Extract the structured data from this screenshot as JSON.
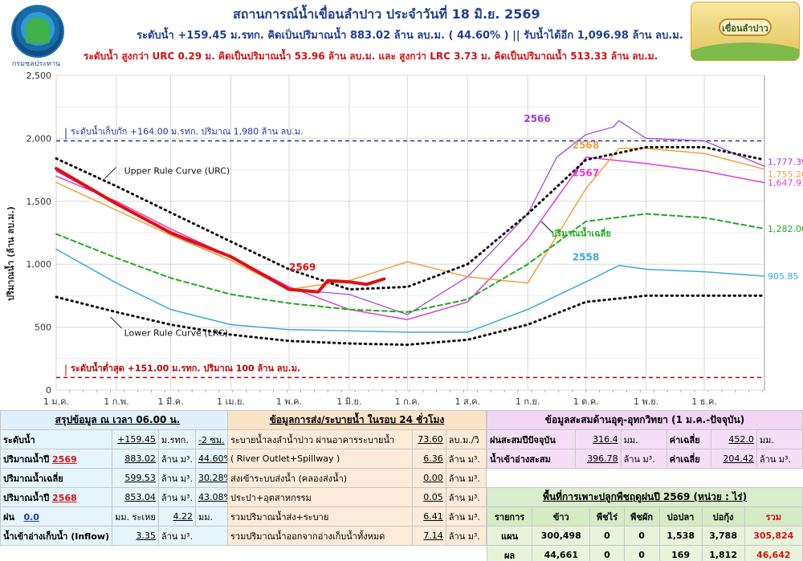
{
  "header": {
    "title": "สถานการณ์น้ำเขื่อนลำปาว ประจำวันที่ 18 มิ.ย. 2569",
    "line2": "ระดับน้ำ +159.45 ม.รทก.  คิดเป็นปริมาณน้ำ 883.02 ล้าน ลบ.ม. ( 44.60% )  || รับน้ำได้อีก 1,096.98 ล้าน ลบ.ม.",
    "line3": "ระดับน้ำ สูงกว่า URC 0.29 ม. คิดเป็นปริมาณน้ำ 53.96 ล้าน ลบ.ม. และ สูงกว่า LRC 3.73 ม. คิดเป็นปริมาณน้ำ 513.33 ล้าน ลบ.ม.",
    "logo_caption": "กรมชลประทาน",
    "badge_text": "เขื่อนลำปาว"
  },
  "chart_data": {
    "type": "line",
    "ylabel": "ปริมาณน้ำ (ล้าน ลบ.ม.)",
    "ylim": [
      0,
      2500
    ],
    "yticks": [
      "0",
      "500",
      "1,000",
      "1,500",
      "2,000",
      "2,500"
    ],
    "xlim": [
      0,
      365
    ],
    "xticks": [
      {
        "label": "1 ม.ค.",
        "day": 0
      },
      {
        "label": "1 ก.พ.",
        "day": 31
      },
      {
        "label": "1 มี.ค.",
        "day": 59
      },
      {
        "label": "1 เม.ย.",
        "day": 90
      },
      {
        "label": "1 พ.ค.",
        "day": 120
      },
      {
        "label": "1 มิ.ย.",
        "day": 151
      },
      {
        "label": "1 ก.ค.",
        "day": 181
      },
      {
        "label": "1 ส.ค.",
        "day": 212
      },
      {
        "label": "1 ก.ย.",
        "day": 243
      },
      {
        "label": "1 ต.ค.",
        "day": 273
      },
      {
        "label": "1 พ.ย.",
        "day": 304
      },
      {
        "label": "1 ธ.ค.",
        "day": 334
      }
    ],
    "grid": true,
    "reference_lines": [
      {
        "label": "ระดับน้ำเก็บกัก  +164.00 ม.รทก. ปริมาณ 1,980 ล้าน ลบ.ม.",
        "y": 1980,
        "color": "#1f2f9f"
      },
      {
        "label": "ระดับน้ำต่ำสุด  +151.00 ม.รทก. ปริมาณ 100 ล้าน ลบ.ม.",
        "y": 100,
        "color": "#c00000"
      }
    ],
    "series": [
      {
        "name": "Upper Rule Curve (URC)",
        "color": "#111111",
        "style": "dotted",
        "width": 3,
        "x": [
          0,
          31,
          59,
          90,
          120,
          151,
          181,
          212,
          243,
          273,
          304,
          334,
          365
        ],
        "y": [
          1840,
          1620,
          1410,
          1180,
          960,
          800,
          820,
          1000,
          1400,
          1830,
          1930,
          1930,
          1830
        ]
      },
      {
        "name": "Lower Rule Curve (LRC)",
        "color": "#111111",
        "style": "dotted",
        "width": 3,
        "x": [
          0,
          31,
          59,
          90,
          120,
          151,
          181,
          212,
          243,
          273,
          304,
          334,
          365
        ],
        "y": [
          740,
          620,
          520,
          440,
          390,
          370,
          360,
          400,
          520,
          700,
          750,
          750,
          750
        ]
      },
      {
        "name": "ปริมาณน้ำเฉลี่ย",
        "color": "#22aa22",
        "style": "dashed",
        "width": 2,
        "x": [
          0,
          31,
          59,
          90,
          120,
          151,
          181,
          212,
          243,
          273,
          304,
          334,
          365
        ],
        "y": [
          1240,
          1050,
          890,
          760,
          690,
          640,
          620,
          720,
          1000,
          1340,
          1400,
          1370,
          1282.06
        ]
      },
      {
        "name": "2558",
        "color": "#3aaad8",
        "style": "solid",
        "width": 1.5,
        "x": [
          0,
          31,
          59,
          90,
          120,
          151,
          181,
          212,
          243,
          273,
          290,
          304,
          334,
          365
        ],
        "y": [
          1120,
          850,
          640,
          520,
          480,
          470,
          460,
          460,
          640,
          860,
          990,
          960,
          940,
          905.85
        ]
      },
      {
        "name": "2566",
        "color": "#9c3ce0",
        "style": "solid",
        "width": 1.2,
        "x": [
          0,
          31,
          59,
          90,
          120,
          151,
          181,
          212,
          243,
          258,
          273,
          287,
          290,
          304,
          334,
          365
        ],
        "y": [
          1740,
          1480,
          1240,
          1030,
          800,
          760,
          600,
          900,
          1400,
          1850,
          2030,
          2090,
          2140,
          2000,
          1980,
          1777.39
        ]
      },
      {
        "name": "2567",
        "color": "#e03cd0",
        "style": "solid",
        "width": 1.5,
        "x": [
          0,
          31,
          59,
          90,
          120,
          151,
          181,
          212,
          243,
          273,
          304,
          334,
          365
        ],
        "y": [
          1700,
          1500,
          1280,
          1060,
          820,
          640,
          560,
          700,
          1200,
          1850,
          1800,
          1740,
          1647.93
        ]
      },
      {
        "name": "2568",
        "color": "#f0a040",
        "style": "solid",
        "width": 1.5,
        "x": [
          0,
          31,
          59,
          90,
          120,
          151,
          181,
          212,
          243,
          273,
          290,
          304,
          334,
          365
        ],
        "y": [
          1650,
          1430,
          1230,
          1030,
          800,
          870,
          1020,
          900,
          850,
          1600,
          1920,
          1920,
          1880,
          1755.2
        ]
      },
      {
        "name": "2569",
        "color": "#e01010",
        "style": "solid",
        "width": 4,
        "x": [
          0,
          31,
          59,
          90,
          120,
          135,
          140,
          151,
          160,
          169
        ],
        "y": [
          1760,
          1480,
          1250,
          1060,
          800,
          780,
          870,
          860,
          840,
          883.02
        ]
      }
    ],
    "end_labels": [
      {
        "text": "1,777.39",
        "series": "2566"
      },
      {
        "text": "1,755.20",
        "series": "2568"
      },
      {
        "text": "1,647.93",
        "series": "2567"
      },
      {
        "text": "1,282.06",
        "series": "ปริมาณน้ำเฉลี่ย"
      },
      {
        "text": "905.85",
        "series": "2558"
      }
    ],
    "annotations": [
      "Upper Rule Curve (URC)",
      "Lower Rule Curve (LRC)",
      "ปริมาณน้ำเฉลี่ย",
      "2569",
      "2566",
      "2567",
      "2568",
      "2558"
    ]
  },
  "summary_table": {
    "title": "สรุปข้อมูล ณ เวลา 06.00 น.",
    "rows": [
      [
        "ระดับน้ำ",
        "+159.45",
        "ม.รทก.",
        "-2 ซม."
      ],
      [
        "ปริมาณน้ำปี",
        "2569",
        "883.02",
        "ล้าน ม³.",
        "44.60%"
      ],
      [
        "ปริมาณน้ำเฉลี่ย",
        "599.53",
        "ล้าน ม³.",
        "30.28%"
      ],
      [
        "ปริมาณน้ำปี",
        "2568",
        "853.04",
        "ล้าน ม³.",
        "43.08%"
      ],
      [
        "ฝน",
        "0.0",
        "มม. ระเหย",
        "4.22",
        "มม."
      ],
      [
        "น้ำเข้าอ่างเก็บน้ำ (Inflow)",
        "3.35",
        "ล้าน ม³."
      ]
    ]
  },
  "release_table": {
    "title": "ข้อมูลการส่ง/ระบายน้ำ ในรอบ 24 ชั่วโมง",
    "rows": [
      [
        "ระบายน้ำลงลำน้ำปาว ผ่านอาคารระบายน้ำ",
        "73.60",
        "ลบ.ม./วิ"
      ],
      [
        "( River Outlet+Spillway )",
        "6.36",
        "ล้าน ม³."
      ],
      [
        "ส่งเข้าระบบส่งน้ำ (คลองส่งน้ำ)",
        "0.00",
        "ล้าน ม³."
      ],
      [
        "ประปา+อุตสาหกรรม",
        "0.05",
        "ล้าน ม³."
      ],
      [
        "รวมปริมาณน้ำส่ง+ระบาย",
        "6.41",
        "ล้าน ม³."
      ],
      [
        "รวมปริมาณน้ำออกจากอ่างเก็บน้ำทั้งหมด",
        "7.14",
        "ล้าน ม³."
      ]
    ]
  },
  "hydro_table": {
    "title": "ข้อมูลสะสมด้านอุตุ-อุทกวิทยา (1 ม.ค.-ปัจจุบัน)",
    "rows": [
      [
        "ฝนสะสมปีปัจจุบัน",
        "316.4",
        "มม.",
        "ค่าเฉลี่ย",
        "452.0",
        "มม."
      ],
      [
        "น้ำเข้าอ่างสะสม",
        "396.78",
        "ล้าน ม³.",
        "ค่าเฉลี่ย",
        "204.42",
        "ล้าน ม³."
      ]
    ]
  },
  "crop_table": {
    "title": "พื้นที่การเพาะปลูกพืชฤดูฝนปี 2569 (หน่วย : ไร่)",
    "headers": [
      "รายการ",
      "ข้าว",
      "พืชไร่",
      "พืชผัก",
      "บ่อปลา",
      "บ่อกุ้ง",
      "รวม"
    ],
    "rows": [
      [
        "แผน",
        "300,498",
        "0",
        "0",
        "1,538",
        "3,788",
        "305,824"
      ],
      [
        "ผล",
        "44,661",
        "0",
        "0",
        "169",
        "1,812",
        "46,642"
      ]
    ]
  },
  "colors": {
    "title": "#1f3f8f",
    "alert": "#d41111",
    "plot_bg": "#ffffff",
    "summary_bg": "#e6f4fc",
    "release_bg": "#fcebd8",
    "hydro_bg": "#f4def6",
    "crop_bg": "#e8f3dc"
  }
}
